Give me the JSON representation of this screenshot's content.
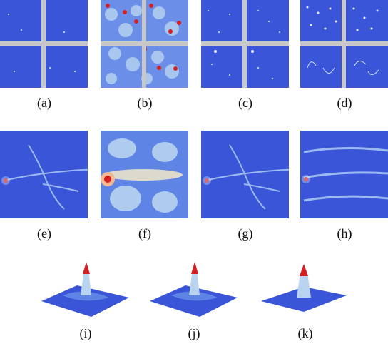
{
  "captions": {
    "a": "(a)",
    "b": "(b)",
    "c": "(c)",
    "d": "(d)",
    "e": "(e)",
    "f": "(f)",
    "g": "(g)",
    "h": "(h)",
    "i": "(i)",
    "j": "(j)",
    "k": "(k)"
  },
  "colors": {
    "map_blue": "#3a55d8",
    "grid_gray": "#c8c8c8",
    "hot_red": "#d42020",
    "light_blue": "#b8d4f0"
  }
}
